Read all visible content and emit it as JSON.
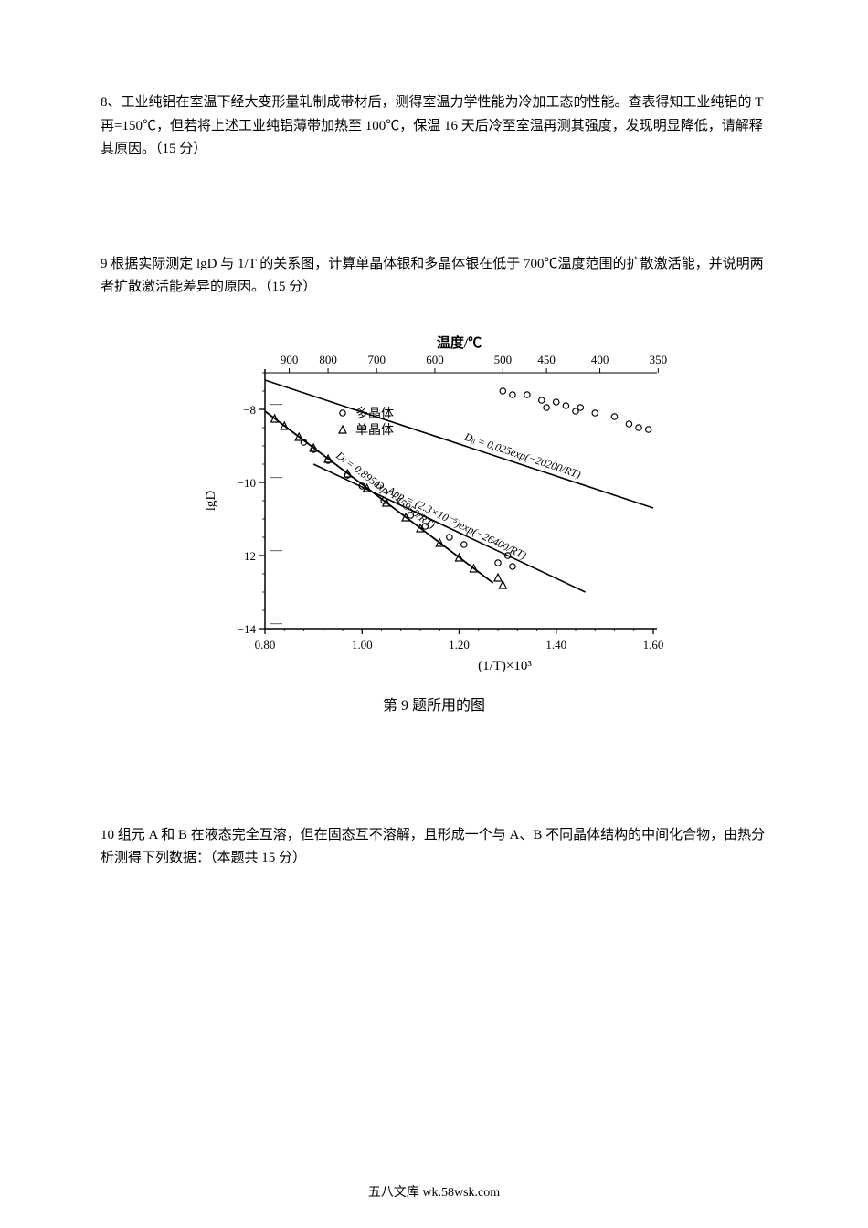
{
  "q8": {
    "text": "8、工业纯铝在室温下经大变形量轧制成带材后，测得室温力学性能为冷加工态的性能。查表得知工业纯铝的 T 再=150℃，但若将上述工业纯铝薄带加热至 100℃，保温 16 天后冷至室温再测其强度，发现明显降低，请解释其原因。（15 分）"
  },
  "q9": {
    "text": "9  根据实际测定 lgD 与 1/T 的关系图，计算单晶体银和多晶体银在低于 700℃温度范围的扩散激活能，并说明两者扩散激活能差异的原因。（15 分）",
    "caption": "第 9 题所用的图",
    "chart": {
      "type": "scatter-line",
      "title": "温度/℃",
      "xlabel": "(1/T)×10³",
      "ylabel": "lgD",
      "background": "#ffffff",
      "axis_color": "#000000",
      "tick_color": "#000000",
      "x_range": [
        0.8,
        1.6
      ],
      "y_range": [
        -14,
        -7
      ],
      "x_ticks": [
        0.8,
        1.0,
        1.2,
        1.4,
        1.6
      ],
      "y_ticks": [
        -14,
        -12,
        -10,
        -8
      ],
      "top_temp_labels": [
        "900",
        "800",
        "700",
        "600",
        "500",
        "450",
        "400",
        "350"
      ],
      "top_temp_x": [
        0.85,
        0.93,
        1.03,
        1.15,
        1.29,
        1.38,
        1.49,
        1.61
      ],
      "legend": [
        {
          "marker": "circle_open",
          "label": "多晶体"
        },
        {
          "marker": "triangle_open",
          "label": "单晶体"
        }
      ],
      "lines": [
        {
          "name": "Db",
          "eq": "Dᵦ = 0.025exp(−20200/RT)",
          "points": [
            [
              0.8,
              -7.2
            ],
            [
              1.6,
              -10.7
            ]
          ],
          "width": 1.6
        },
        {
          "name": "Dapp",
          "eq": "D_App = (2.3×10⁻⁵)exp(−26400/RT)",
          "points": [
            [
              0.9,
              -9.5
            ],
            [
              1.46,
              -13.0
            ]
          ],
          "width": 1.6
        },
        {
          "name": "Dl",
          "eq": "Dₗ = 0.895exp(−45950/RT)",
          "points": [
            [
              0.8,
              -8.05
            ],
            [
              1.27,
              -12.75
            ]
          ],
          "width": 1.8
        }
      ],
      "poly_markers": [
        [
          0.88,
          -8.9
        ],
        [
          0.9,
          -9.1
        ],
        [
          0.93,
          -9.4
        ],
        [
          0.97,
          -9.8
        ],
        [
          1.0,
          -10.1
        ],
        [
          1.045,
          -10.5
        ],
        [
          1.1,
          -10.9
        ],
        [
          1.13,
          -11.2
        ],
        [
          1.18,
          -11.5
        ],
        [
          1.21,
          -11.7
        ],
        [
          1.28,
          -12.2
        ],
        [
          1.3,
          -12.0
        ],
        [
          1.31,
          -12.3
        ],
        [
          1.29,
          -7.5
        ],
        [
          1.31,
          -7.6
        ],
        [
          1.34,
          -7.6
        ],
        [
          1.37,
          -7.75
        ],
        [
          1.38,
          -7.95
        ],
        [
          1.4,
          -7.8
        ],
        [
          1.42,
          -7.9
        ],
        [
          1.44,
          -8.05
        ],
        [
          1.45,
          -7.95
        ],
        [
          1.48,
          -8.1
        ],
        [
          1.52,
          -8.2
        ],
        [
          1.55,
          -8.4
        ],
        [
          1.57,
          -8.5
        ],
        [
          1.59,
          -8.55
        ]
      ],
      "single_markers": [
        [
          0.82,
          -8.25
        ],
        [
          0.84,
          -8.45
        ],
        [
          0.87,
          -8.75
        ],
        [
          0.9,
          -9.05
        ],
        [
          0.93,
          -9.35
        ],
        [
          0.97,
          -9.75
        ],
        [
          1.01,
          -10.15
        ],
        [
          1.05,
          -10.55
        ],
        [
          1.09,
          -10.95
        ],
        [
          1.12,
          -11.25
        ],
        [
          1.16,
          -11.65
        ],
        [
          1.2,
          -12.05
        ],
        [
          1.23,
          -12.35
        ],
        [
          1.28,
          -12.6
        ],
        [
          1.29,
          -12.8
        ]
      ],
      "font_tick": 13,
      "font_axis": 15,
      "font_eq": 12,
      "font_title": 15,
      "font_legend": 14
    }
  },
  "q10": {
    "text": "10  组元 A 和 B 在液态完全互溶，但在固态互不溶解，且形成一个与 A、B 不同晶体结构的中间化合物，由热分析测得下列数据：（本题共 15 分）"
  },
  "footer": {
    "text": "五八文库 wk.58wsk.com"
  }
}
